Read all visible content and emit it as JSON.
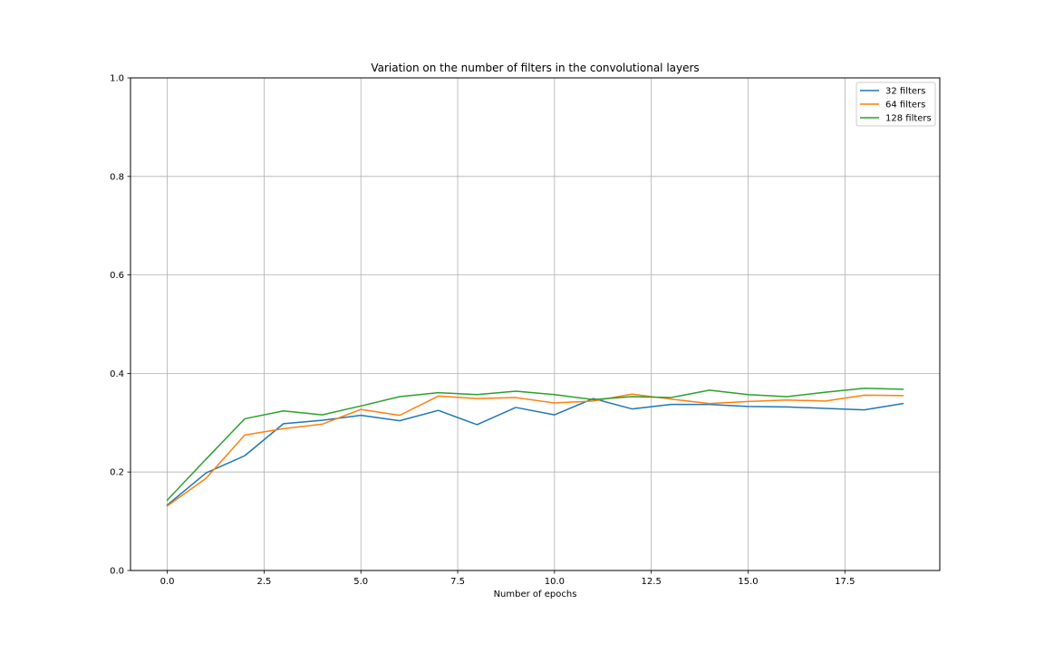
{
  "chart_data": {
    "type": "line",
    "title": "Variation on the number of filters in the convolutional layers",
    "xlabel": "Number of epochs",
    "ylabel": "",
    "xlim": [
      -0.95,
      19.95
    ],
    "ylim": [
      0.0,
      1.0
    ],
    "xticks": [
      0.0,
      2.5,
      5.0,
      7.5,
      10.0,
      12.5,
      15.0,
      17.5
    ],
    "xtick_labels": [
      "0.0",
      "2.5",
      "5.0",
      "7.5",
      "10.0",
      "12.5",
      "15.0",
      "17.5"
    ],
    "yticks": [
      0.0,
      0.2,
      0.4,
      0.6,
      0.8,
      1.0
    ],
    "ytick_labels": [
      "0.0",
      "0.2",
      "0.4",
      "0.6",
      "0.8",
      "1.0"
    ],
    "grid": true,
    "legend_position": "top-right",
    "x": [
      0,
      1,
      2,
      3,
      4,
      5,
      6,
      7,
      8,
      9,
      10,
      11,
      12,
      13,
      14,
      15,
      16,
      17,
      18,
      19
    ],
    "series": [
      {
        "name": "32 filters",
        "color": "#1f77b4",
        "values": [
          0.133,
          0.198,
          0.233,
          0.298,
          0.305,
          0.315,
          0.304,
          0.325,
          0.296,
          0.331,
          0.316,
          0.349,
          0.328,
          0.337,
          0.337,
          0.333,
          0.332,
          0.329,
          0.326,
          0.339
        ]
      },
      {
        "name": "64 filters",
        "color": "#ff7f0e",
        "values": [
          0.131,
          0.187,
          0.275,
          0.288,
          0.297,
          0.327,
          0.315,
          0.354,
          0.349,
          0.351,
          0.34,
          0.344,
          0.358,
          0.348,
          0.339,
          0.343,
          0.346,
          0.344,
          0.356,
          0.355
        ]
      },
      {
        "name": "128 filters",
        "color": "#2ca02c",
        "values": [
          0.143,
          0.226,
          0.308,
          0.324,
          0.316,
          0.334,
          0.353,
          0.361,
          0.357,
          0.364,
          0.357,
          0.347,
          0.353,
          0.351,
          0.366,
          0.357,
          0.353,
          0.362,
          0.37,
          0.368
        ]
      }
    ]
  }
}
